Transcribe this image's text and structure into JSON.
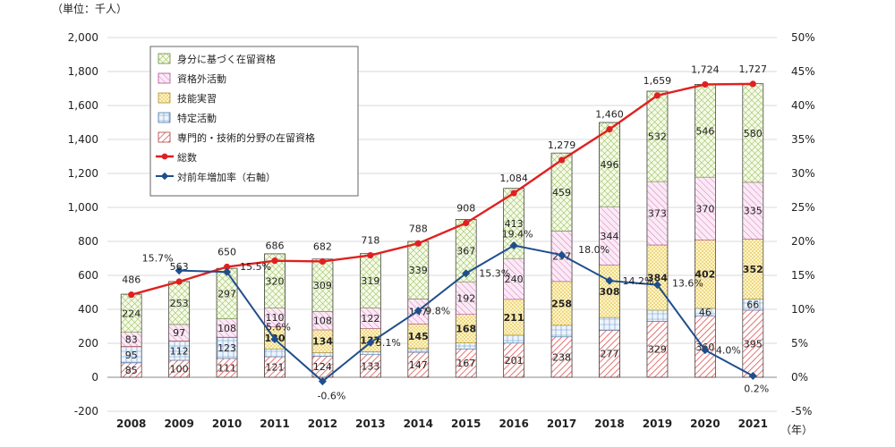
{
  "chart_data": {
    "type": "bar",
    "unit_label": "（単位：千人）",
    "x_unit": "（年）",
    "categories": [
      "2008",
      "2009",
      "2010",
      "2011",
      "2012",
      "2013",
      "2014",
      "2015",
      "2016",
      "2017",
      "2018",
      "2019",
      "2020",
      "2021"
    ],
    "stack_series": [
      {
        "name": "専門的・技術的分野の在留資格",
        "values": [
          85,
          100,
          111,
          121,
          124,
          133,
          147,
          167,
          201,
          238,
          277,
          329,
          360,
          395
        ],
        "color": "#e05050",
        "bold_labels": []
      },
      {
        "name": "特定活動",
        "values": [
          95,
          112,
          123,
          46,
          21,
          17,
          22,
          35,
          47,
          68,
          75,
          66,
          46,
          66
        ],
        "color": "#5a8fc8",
        "bold_labels": [],
        "show_labels": [
          true,
          true,
          true,
          false,
          false,
          false,
          false,
          false,
          false,
          false,
          false,
          false,
          true,
          true
        ]
      },
      {
        "name": "技能実習",
        "values": [
          2,
          2,
          2,
          130,
          134,
          137,
          145,
          168,
          211,
          258,
          308,
          384,
          402,
          352
        ],
        "color": "#e0c040",
        "bold_labels": [
          3,
          4,
          5,
          6,
          7,
          8,
          9,
          10,
          11,
          12,
          13
        ],
        "show_labels": [
          false,
          false,
          false,
          true,
          true,
          true,
          true,
          true,
          true,
          true,
          true,
          true,
          true,
          true
        ]
      },
      {
        "name": "資格外活動",
        "values": [
          83,
          97,
          108,
          110,
          108,
          122,
          147,
          192,
          240,
          297,
          344,
          373,
          370,
          335
        ],
        "color": "#d070b0",
        "bold_labels": []
      },
      {
        "name": "身分に基づく在留資格",
        "values": [
          224,
          253,
          297,
          320,
          309,
          319,
          339,
          367,
          413,
          459,
          496,
          532,
          546,
          580
        ],
        "color": "#90b850",
        "bold_labels": []
      }
    ],
    "total_series": {
      "name": "総数",
      "values": [
        486,
        563,
        650,
        686,
        682,
        718,
        788,
        908,
        1084,
        1279,
        1460,
        1659,
        1724,
        1727
      ],
      "color": "#e02020"
    },
    "rate_series": {
      "name": "対前年増加率（右軸）",
      "values": [
        15.7,
        15.5,
        5.6,
        -0.6,
        5.1,
        9.8,
        15.3,
        19.4,
        18.0,
        14.2,
        13.6,
        4.0,
        0.2
      ],
      "labels": [
        "15.7%",
        "15.5%",
        "5.6%",
        "-0.6%",
        "5.1%",
        "9.8%",
        "15.3%",
        "19.4%",
        "18.0%",
        "14.2%",
        "13.6%",
        "4.0%",
        "0.2%"
      ],
      "color": "#1f4e8c"
    },
    "ylim": [
      -200,
      2000
    ],
    "y_ticks": [
      "-200",
      "0",
      "200",
      "400",
      "600",
      "800",
      "1,000",
      "1,200",
      "1,400",
      "1,600",
      "1,800",
      "2,000"
    ],
    "y2lim": [
      -5,
      50
    ],
    "y2_ticks": [
      "-5%",
      "0%",
      "5%",
      "10%",
      "15%",
      "20%",
      "25%",
      "30%",
      "35%",
      "40%",
      "45%",
      "50%"
    ],
    "legend_position": "top-left"
  }
}
